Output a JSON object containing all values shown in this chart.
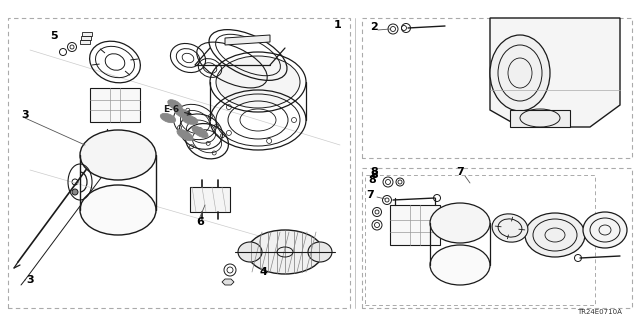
{
  "bg_color": "#ffffff",
  "border_color": "#aaaaaa",
  "line_color": "#1a1a1a",
  "gray": "#888888",
  "diagram_code": "TR24E0710A",
  "fig_width": 6.4,
  "fig_height": 3.2,
  "dpi": 100
}
